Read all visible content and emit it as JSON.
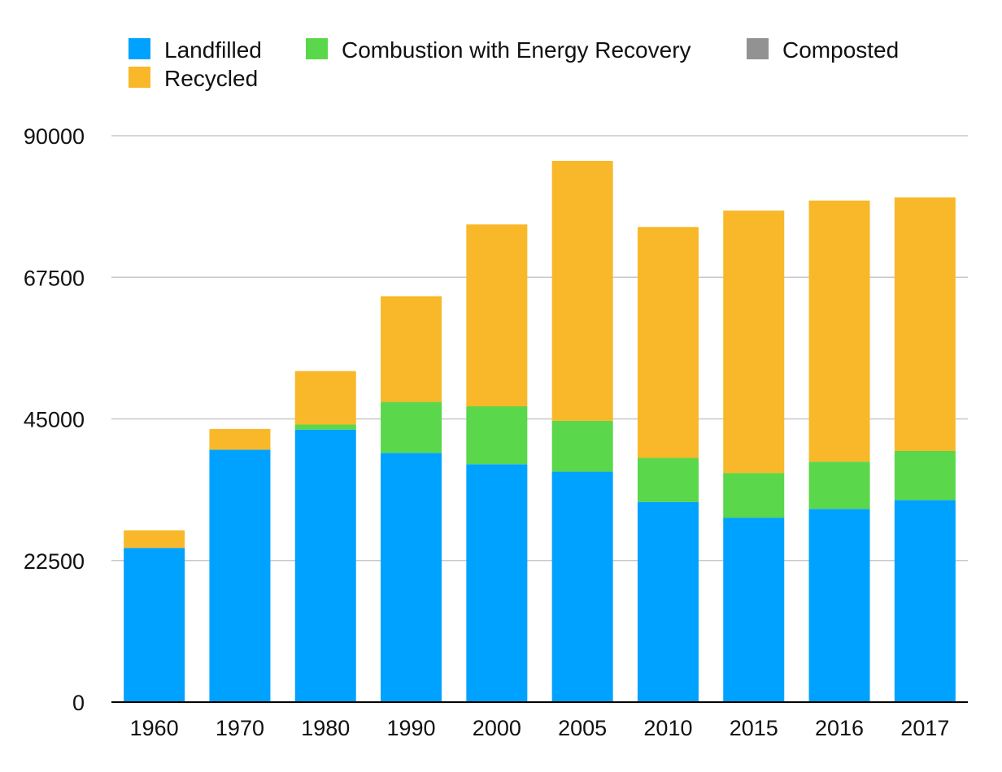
{
  "chart_data": {
    "type": "bar",
    "stacked": true,
    "title": "",
    "xlabel": "",
    "ylabel": "",
    "categories": [
      "1960",
      "1970",
      "1980",
      "1990",
      "2000",
      "2005",
      "2010",
      "2015",
      "2016",
      "2017"
    ],
    "series": [
      {
        "name": "Landfilled",
        "color": "#00a2ff",
        "values": [
          24500,
          40100,
          43300,
          39600,
          37800,
          36600,
          31800,
          29300,
          30700,
          32100
        ]
      },
      {
        "name": "Combustion with Energy Recovery",
        "color": "#5ad74a",
        "values": [
          0,
          0,
          800,
          8100,
          9200,
          8100,
          7000,
          7100,
          7500,
          7800
        ]
      },
      {
        "name": "Composted",
        "color": "#929292",
        "values": [
          0,
          0,
          0,
          0,
          0,
          0,
          0,
          0,
          0,
          0
        ]
      },
      {
        "name": "Recycled",
        "color": "#f8b829",
        "values": [
          2800,
          3300,
          8500,
          16800,
          28900,
          41300,
          36700,
          41700,
          41500,
          40300
        ]
      }
    ],
    "ylim": [
      0,
      90000
    ],
    "yticks": [
      "0",
      "22500",
      "45000",
      "67500",
      "90000"
    ],
    "grid": true,
    "legend_position": "top-left"
  }
}
